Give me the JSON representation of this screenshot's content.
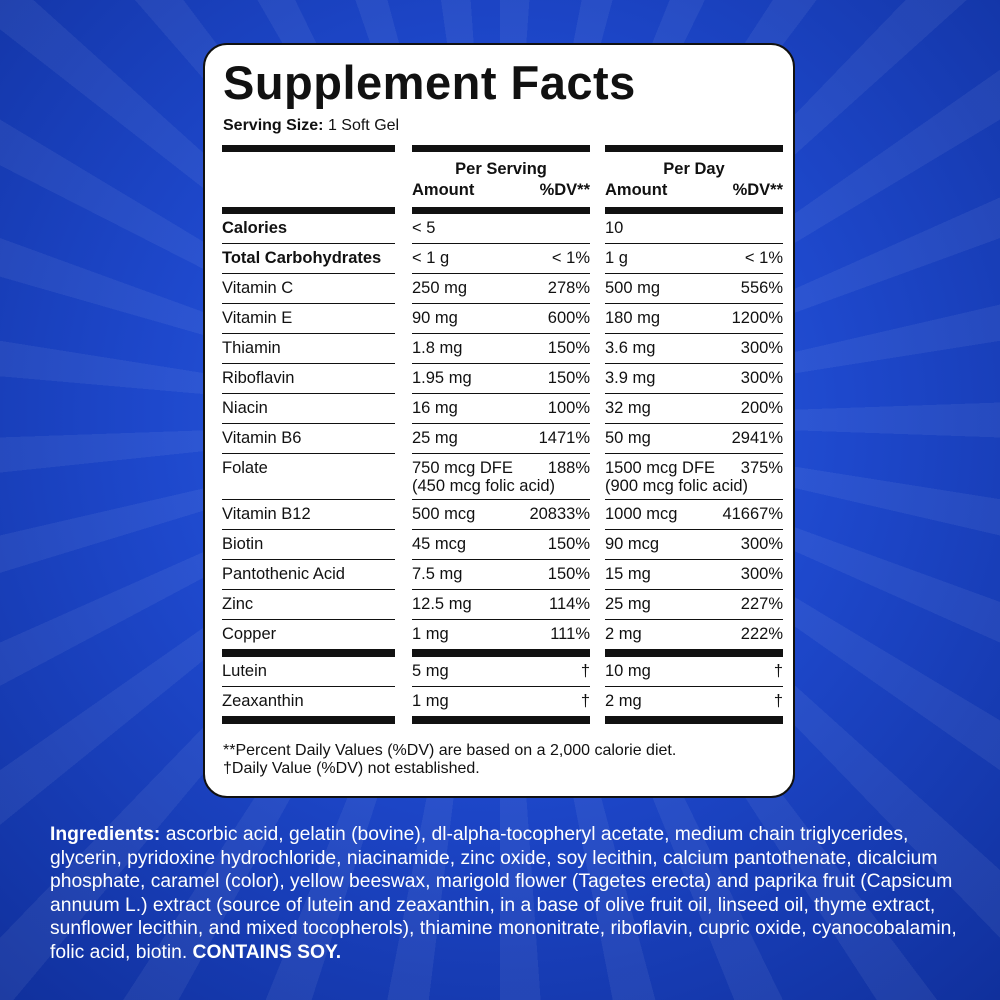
{
  "panel": {
    "title": "Supplement Facts",
    "serving_size": {
      "label": "Serving Size:",
      "value": "1 Soft Gel"
    },
    "columns": [
      {
        "heading": "Per Serving",
        "amount": "Amount",
        "dv": "%DV**"
      },
      {
        "heading": "Per Day",
        "amount": "Amount",
        "dv": "%DV**"
      }
    ],
    "sections": [
      [
        {
          "name": "Calories",
          "bold": true,
          "cells": [
            {
              "amount": "< 5"
            },
            {
              "amount": "10"
            }
          ]
        },
        {
          "name": "Total Carbohydrates",
          "bold": true,
          "cells": [
            {
              "amount": "< 1 g",
              "dv": "< 1%"
            },
            {
              "amount": "1 g",
              "dv": "< 1%"
            }
          ]
        },
        {
          "name": "Vitamin C",
          "cells": [
            {
              "amount": "250 mg",
              "dv": "278%"
            },
            {
              "amount": "500 mg",
              "dv": "556%"
            }
          ]
        },
        {
          "name": "Vitamin E",
          "cells": [
            {
              "amount": "90 mg",
              "dv": "600%"
            },
            {
              "amount": "180 mg",
              "dv": "1200%"
            }
          ]
        },
        {
          "name": "Thiamin",
          "cells": [
            {
              "amount": "1.8 mg",
              "dv": "150%"
            },
            {
              "amount": "3.6 mg",
              "dv": "300%"
            }
          ]
        },
        {
          "name": "Riboflavin",
          "cells": [
            {
              "amount": "1.95 mg",
              "dv": "150%"
            },
            {
              "amount": "3.9 mg",
              "dv": "300%"
            }
          ]
        },
        {
          "name": "Niacin",
          "cells": [
            {
              "amount": "16 mg",
              "dv": "100%"
            },
            {
              "amount": "32 mg",
              "dv": "200%"
            }
          ]
        },
        {
          "name": "Vitamin B6",
          "cells": [
            {
              "amount": "25 mg",
              "dv": "1471%"
            },
            {
              "amount": "50 mg",
              "dv": "2941%"
            }
          ]
        },
        {
          "name": "Folate",
          "cells": [
            {
              "amount": "750 mcg DFE",
              "dv": "188%",
              "note": "(450 mcg folic acid)"
            },
            {
              "amount": "1500 mcg DFE",
              "dv": "375%",
              "note": "(900 mcg folic acid)"
            }
          ]
        },
        {
          "name": "Vitamin B12",
          "cells": [
            {
              "amount": "500 mcg",
              "dv": "20833%"
            },
            {
              "amount": "1000 mcg",
              "dv": "41667%"
            }
          ]
        },
        {
          "name": "Biotin",
          "cells": [
            {
              "amount": "45 mcg",
              "dv": "150%"
            },
            {
              "amount": "90 mcg",
              "dv": "300%"
            }
          ]
        },
        {
          "name": "Pantothenic Acid",
          "cells": [
            {
              "amount": "7.5 mg",
              "dv": "150%"
            },
            {
              "amount": "15 mg",
              "dv": "300%"
            }
          ]
        },
        {
          "name": "Zinc",
          "cells": [
            {
              "amount": "12.5 mg",
              "dv": "114%"
            },
            {
              "amount": "25 mg",
              "dv": "227%"
            }
          ]
        },
        {
          "name": "Copper",
          "cells": [
            {
              "amount": "1 mg",
              "dv": "111%"
            },
            {
              "amount": "2 mg",
              "dv": "222%"
            }
          ]
        }
      ],
      [
        {
          "name": "Lutein",
          "cells": [
            {
              "amount": "5 mg",
              "dv": "†"
            },
            {
              "amount": "10 mg",
              "dv": "†"
            }
          ]
        },
        {
          "name": "Zeaxanthin",
          "cells": [
            {
              "amount": "1 mg",
              "dv": "†"
            },
            {
              "amount": "2 mg",
              "dv": "†"
            }
          ]
        }
      ]
    ],
    "footnotes": [
      "**Percent Daily Values (%DV) are based on a 2,000 calorie diet.",
      "†Daily Value (%DV) not established."
    ]
  },
  "ingredients": {
    "label": "Ingredients:",
    "text": "ascorbic acid, gelatin (bovine), dl-alpha-tocopheryl acetate, medium chain triglycerides, glycerin, pyridoxine hydrochloride, niacinamide, zinc oxide, soy lecithin, calcium pantothenate, dicalcium phosphate, caramel (color), yellow beeswax, marigold flower (Tagetes erecta) and paprika fruit (Capsicum annuum L.) extract (source of lutein and zeaxanthin, in a base of olive fruit oil, linseed oil, thyme extract, sunflower lecithin, and mixed tocopherols), thiamine mononitrate, riboflavin, cupric oxide, cyanocobalamin, folic acid, biotin.",
    "allergen": "CONTAINS SOY."
  }
}
